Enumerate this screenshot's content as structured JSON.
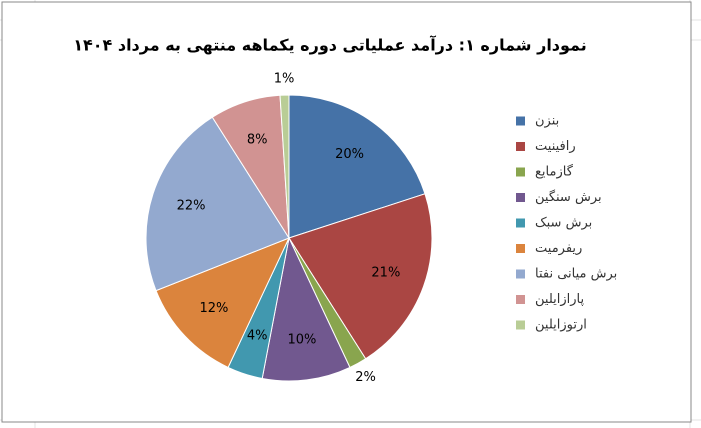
{
  "chart_data": {
    "type": "pie",
    "title": "نمودار شماره ۱: درآمد عملیاتی دوره یکماهه منتهی به مرداد ۱۴۰۴",
    "categories": [
      "بنزن",
      "رافینیت",
      "گازمایع",
      "برش سنگین",
      "برش سبک",
      "ریفرمیت",
      "برش میانی نفتا",
      "پارازایلین",
      "ارتوزایلین"
    ],
    "values": [
      20,
      21,
      2,
      10,
      4,
      12,
      22,
      8,
      1
    ],
    "value_labels": [
      "20%",
      "21%",
      "2%",
      "10%",
      "4%",
      "12%",
      "22%",
      "8%",
      "1%"
    ],
    "colors": [
      "#4572A7",
      "#AA4643",
      "#89A54E",
      "#71588F",
      "#4198AF",
      "#DB843D",
      "#93A9CF",
      "#D19392",
      "#B9CD96"
    ],
    "legend": "right"
  }
}
